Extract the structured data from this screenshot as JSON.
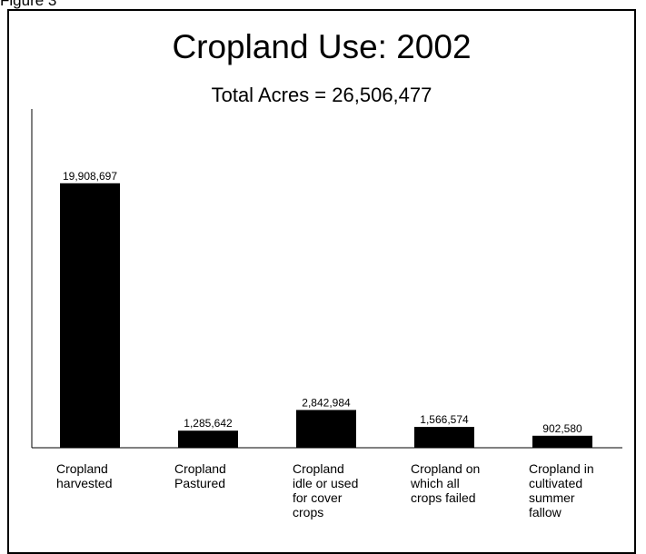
{
  "figure_label": "Figure 3",
  "chart_data": {
    "type": "bar",
    "title": "Cropland Use: 2002",
    "subtitle": "Total Acres = 26,506,477",
    "xlabel": "",
    "ylabel": "",
    "categories": [
      "Cropland harvested",
      "Cropland Pastured",
      "Cropland idle or used for cover crops",
      "Cropland on which all crops failed",
      "Cropland in cultivated summer fallow"
    ],
    "category_label_lines": [
      [
        "Cropland",
        "harvested"
      ],
      [
        "Cropland",
        "Pastured"
      ],
      [
        "Cropland",
        "idle or used",
        "for cover",
        "crops"
      ],
      [
        "Cropland on",
        "which all",
        "crops failed"
      ],
      [
        "Cropland in",
        "cultivated",
        "summer",
        "fallow"
      ]
    ],
    "values": [
      19908697,
      1285642,
      2842984,
      1566574,
      902580
    ],
    "data_labels": [
      "19,908,697",
      "1,285,642",
      "2,842,984",
      "1,566,574",
      "902,580"
    ],
    "ylim": [
      0,
      25500000
    ],
    "grid": false,
    "legend": "none",
    "bar_color": "#000000"
  }
}
